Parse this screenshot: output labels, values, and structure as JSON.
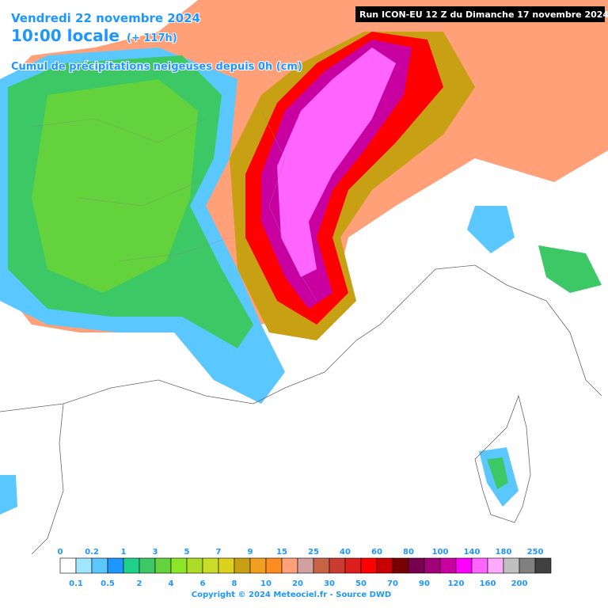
{
  "header": {
    "date": "Vendredi 22 novembre 2024",
    "time": "10:00 locale",
    "lead": "(+ 117h)",
    "subtitle": "Cumul de précipitations neigeuses depuis 0h (cm)",
    "run": "Run ICON-EU 12 Z du Dimanche 17 novembre 2024"
  },
  "legend": {
    "labels": [
      "0",
      "0.1",
      "0.2",
      "0.5",
      "1",
      "2",
      "3",
      "4",
      "5",
      "6",
      "7",
      "8",
      "9",
      "10",
      "15",
      "20",
      "25",
      "30",
      "40",
      "50",
      "60",
      "70",
      "80",
      "90",
      "100",
      "120",
      "140",
      "160",
      "180",
      "200",
      "250"
    ],
    "colors": [
      "#ffffff",
      "#a0e6ff",
      "#5ac8ff",
      "#1e96ff",
      "#1ed28c",
      "#3cc864",
      "#64d23c",
      "#8ce628",
      "#aadc28",
      "#c8dc28",
      "#dcd21e",
      "#c8a014",
      "#f0a01e",
      "#ff8c1e",
      "#ffa078",
      "#d2a0a0",
      "#c86446",
      "#c83c32",
      "#dc1e1e",
      "#ff0000",
      "#c80000",
      "#780000",
      "#780050",
      "#a00078",
      "#c800a0",
      "#ff00ff",
      "#ff64ff",
      "#ffaaff",
      "#c0c0c0",
      "#808080",
      "#404040"
    ]
  },
  "footer": {
    "copyright": "Copyright © 2024 Meteociel.fr - Source DWD"
  }
}
